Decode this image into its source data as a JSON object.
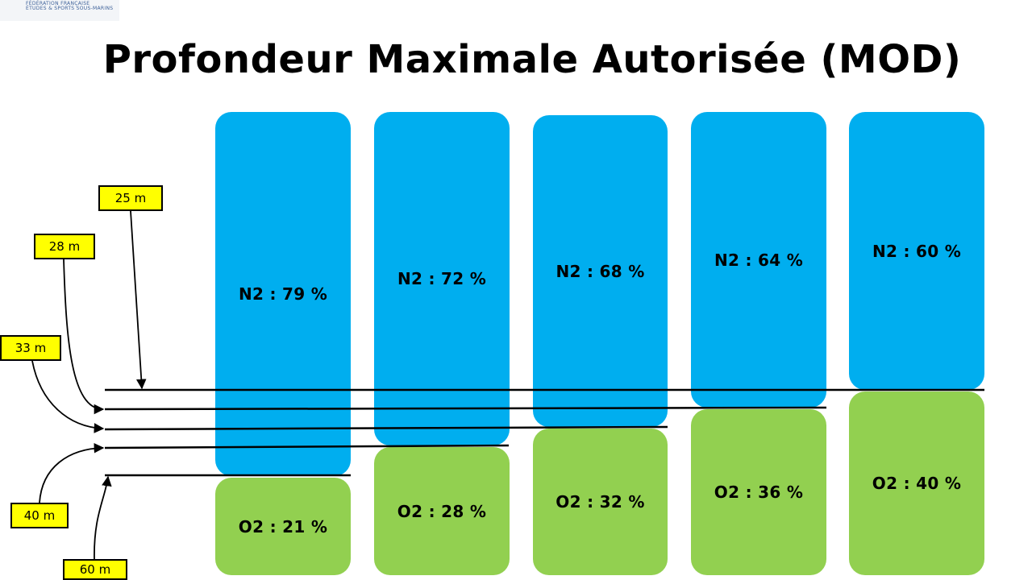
{
  "logo": {
    "line1": "FÉDÉRATION FRANÇAISE",
    "line2": "ÉTUDES & SPORTS SOUS-MARINS"
  },
  "title": "Profondeur Maximale Autorisée (MOD)",
  "columns": [
    {
      "n2_label": "N2 : 79 %",
      "o2_label": "O2 : 21 %",
      "n2_percent": 79,
      "o2_percent": 21
    },
    {
      "n2_label": "N2 : 72 %",
      "o2_label": "O2 : 28 %",
      "n2_percent": 72,
      "o2_percent": 28
    },
    {
      "n2_label": "N2 : 68 %",
      "o2_label": "O2 : 32 %",
      "n2_percent": 68,
      "o2_percent": 32
    },
    {
      "n2_label": "N2 : 64 %",
      "o2_label": "O2 : 36 %",
      "n2_percent": 64,
      "o2_percent": 36
    },
    {
      "n2_label": "N2 : 60 %",
      "o2_label": "O2 : 40 %",
      "n2_percent": 60,
      "o2_percent": 40
    }
  ],
  "depth_labels": [
    "25 m",
    "28 m",
    "33 m",
    "40 m",
    "60 m"
  ],
  "colors": {
    "n2": "#00aeef",
    "o2": "#92d050",
    "label_bg": "#ffff00",
    "line": "#000000"
  }
}
